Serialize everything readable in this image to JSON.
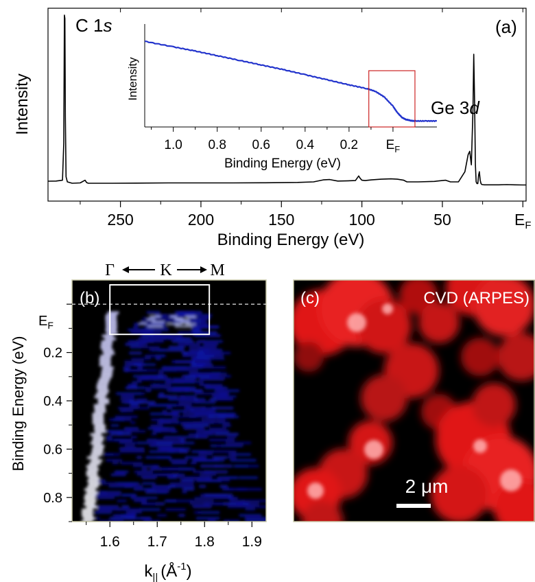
{
  "chart_data": [
    {
      "type": "line",
      "panel": "(a)",
      "xlabel": "Binding Energy (eV)",
      "ylabel": "Intensity",
      "x_reversed": true,
      "xlim": [
        295,
        -2
      ],
      "x_ticks": [
        250,
        200,
        150,
        100,
        50,
        0
      ],
      "x_tick_labels": [
        "250",
        "200",
        "150",
        "100",
        "50",
        "E",
        "F"
      ],
      "annotations": [
        {
          "text": "C 1",
          "italic": "s",
          "x": 284.5
        },
        {
          "text": "Ge 3",
          "italic": "d",
          "x": 29.5
        }
      ],
      "series": [
        {
          "x": [
            295,
            290,
            286,
            285.2,
            284.8,
            284.5,
            284.2,
            283.8,
            283,
            280,
            275,
            272,
            271,
            270,
            265,
            255,
            240,
            220,
            200,
            180,
            160,
            140,
            130,
            124,
            120,
            115,
            110,
            104,
            102,
            101,
            100,
            98,
            94,
            88,
            82,
            78,
            74,
            72,
            65,
            55,
            48,
            45,
            40,
            36,
            34,
            33,
            32.5,
            32,
            31,
            30.5,
            30,
            29.5,
            29,
            28.5,
            28,
            27.5,
            27,
            26.5,
            26,
            25.5,
            25,
            24,
            20,
            15,
            10,
            5,
            0,
            -2
          ],
          "y": [
            0.024,
            0.025,
            0.03,
            0.25,
            1.0,
            0.98,
            0.4,
            0.05,
            0.02,
            0.012,
            0.014,
            0.03,
            0.016,
            0.012,
            0.012,
            0.012,
            0.013,
            0.014,
            0.014,
            0.014,
            0.015,
            0.017,
            0.02,
            0.032,
            0.034,
            0.025,
            0.026,
            0.028,
            0.055,
            0.04,
            0.03,
            0.028,
            0.032,
            0.036,
            0.038,
            0.036,
            0.03,
            0.02,
            0.02,
            0.023,
            0.03,
            0.02,
            0.02,
            0.08,
            0.18,
            0.2,
            0.16,
            0.12,
            0.45,
            0.77,
            0.5,
            0.12,
            0.02,
            0.01,
            0.01,
            0.06,
            0.08,
            0.03,
            0.01,
            0.005,
            0.004,
            0.003,
            0.003,
            0.003,
            0.004,
            0.003,
            0.002,
            0.002
          ]
        }
      ]
    },
    {
      "type": "line",
      "panel": "(a) inset",
      "xlabel": "Binding Energy (eV)",
      "ylabel": "Intensity",
      "x_reversed": true,
      "xlim": [
        1.13,
        -0.2
      ],
      "x_ticks": [
        1.0,
        0.8,
        0.6,
        0.4,
        0.2,
        0.0
      ],
      "x_tick_labels": [
        "1.0",
        "0.8",
        "0.6",
        "0.4",
        "0.2",
        "E",
        "F"
      ],
      "highlight_box": {
        "x_range": [
          0.11,
          -0.1
        ],
        "color": "#cc2222"
      },
      "series": [
        {
          "color": "#2233cc",
          "x": [
            1.13,
            1.0,
            0.9,
            0.8,
            0.7,
            0.6,
            0.5,
            0.4,
            0.3,
            0.2,
            0.12,
            0.08,
            0.04,
            0.0,
            -0.02,
            -0.04,
            -0.06,
            -0.08,
            -0.1,
            -0.15,
            -0.2
          ],
          "y": [
            0.88,
            0.82,
            0.775,
            0.725,
            0.675,
            0.625,
            0.575,
            0.52,
            0.465,
            0.41,
            0.37,
            0.34,
            0.28,
            0.18,
            0.11,
            0.06,
            0.035,
            0.025,
            0.02,
            0.02,
            0.02
          ]
        }
      ]
    },
    {
      "type": "heatmap",
      "panel": "(b)",
      "xlabel": "k",
      "xlabel_sub": "||",
      "xlabel_unit_prefix": "(Å",
      "xlabel_unit_sup": "-1",
      "xlabel_unit_suffix": ")",
      "ylabel": "Binding Energy (eV)",
      "y_reversed": true,
      "xlim": [
        1.52,
        1.93
      ],
      "ylim": [
        -0.1,
        0.9
      ],
      "x_ticks": [
        1.6,
        1.7,
        1.8,
        1.9
      ],
      "x_tick_labels": [
        "1.6",
        "1.7",
        "1.8",
        "1.9"
      ],
      "y_ticks": [
        0.2,
        0.4,
        0.6,
        0.8
      ],
      "y_tick_labels": [
        "0.2",
        "0.4",
        "0.6",
        "0.8"
      ],
      "fermi_label_main": "E",
      "fermi_label_sub": "F",
      "fermi_level": 0.0,
      "direction_labels": [
        "Γ",
        "K",
        "M"
      ],
      "highlight_box": {
        "x_range": [
          1.6,
          1.81
        ],
        "y_range": [
          -0.08,
          0.125
        ],
        "color": "#ffffff"
      },
      "colormap": "black-blue-white"
    },
    {
      "type": "heatmap",
      "panel": "(c)",
      "title": "CVD (ARPES)",
      "scale_bar": "2 μm",
      "colormap": "black-red-white"
    }
  ],
  "labels": {
    "panel_a": "(a)",
    "panel_b": "(b)",
    "panel_c": "(c)",
    "c1s_main": "C 1",
    "c1s_italic": "s",
    "ge3d_main": "Ge 3",
    "ge3d_italic": "d",
    "fermi_main": "E",
    "fermi_sub": "F",
    "gamma": "Γ",
    "k_point": "K",
    "m_point": "M",
    "scale_bar": "2 μm",
    "cvd_title": "CVD (ARPES)"
  },
  "colors": {
    "spectrum": "#000000",
    "inset_spectrum": "#2233cc",
    "inset_box": "#cc2222",
    "arpes_box": "#ffffff",
    "panel_frame": "#c8c8a8"
  }
}
